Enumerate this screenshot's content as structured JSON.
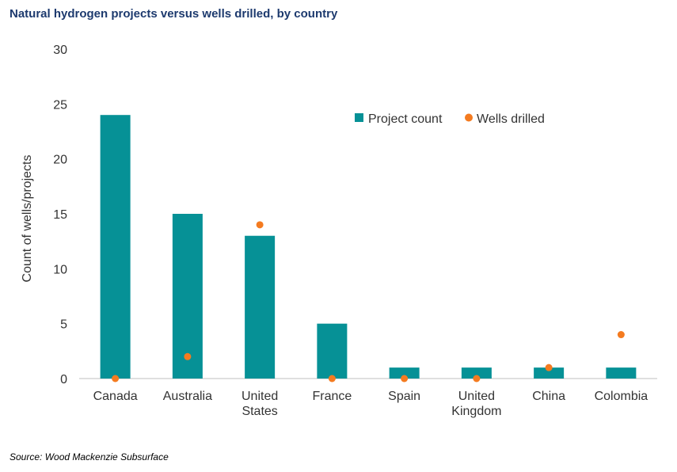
{
  "title": "Natural hydrogen projects versus wells drilled, by country",
  "source": "Source: Wood Mackenzie Subsurface",
  "colors": {
    "bar": "#069196",
    "dot": "#f47b20",
    "title": "#1d3a6e"
  },
  "chart_data": {
    "type": "bar",
    "title": "Natural hydrogen projects versus wells drilled, by country",
    "xlabel": "",
    "ylabel": "Count of wells/projects",
    "ylim": [
      0,
      30
    ],
    "yticks": [
      "0",
      "5",
      "10",
      "15",
      "20",
      "25",
      "30"
    ],
    "categories": [
      [
        "Canada"
      ],
      [
        "Australia"
      ],
      [
        "United",
        "States"
      ],
      [
        "France"
      ],
      [
        "Spain"
      ],
      [
        "United",
        "Kingdom"
      ],
      [
        "China"
      ],
      [
        "Colombia"
      ]
    ],
    "series": [
      {
        "name": "Project count",
        "type": "bar",
        "values": [
          24,
          15,
          13,
          5,
          1,
          1,
          1,
          1
        ]
      },
      {
        "name": "Wells drilled",
        "type": "scatter",
        "values": [
          0,
          2,
          14,
          0,
          0,
          0,
          1,
          4
        ]
      }
    ],
    "legend": [
      "Project count",
      "Wells drilled"
    ],
    "legend_position": "top-right",
    "grid": false
  }
}
